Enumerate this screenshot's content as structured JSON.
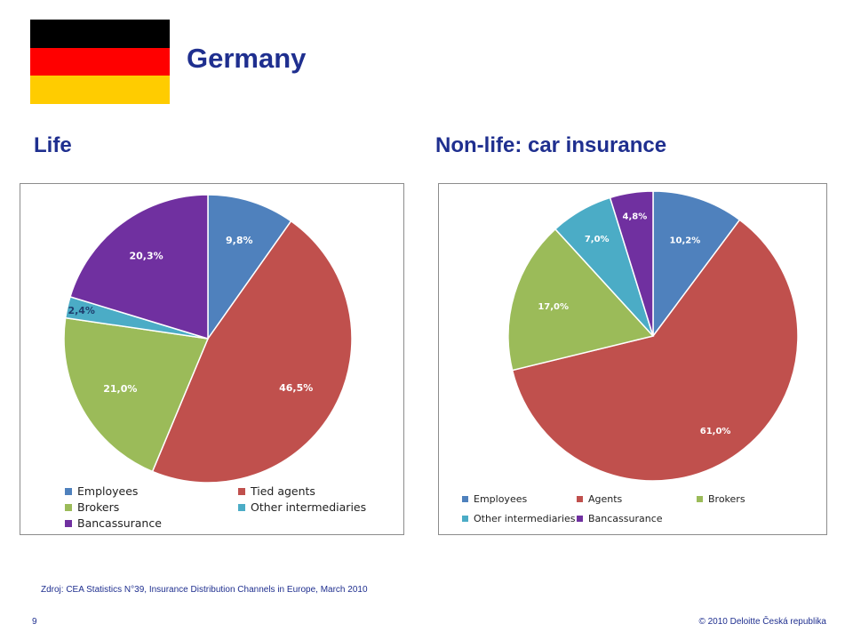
{
  "header": {
    "title": "Germany",
    "flag_colors": [
      "#000000",
      "#ff0000",
      "#ffcc00"
    ]
  },
  "chart_data": [
    {
      "type": "pie",
      "title": "Life",
      "categories": [
        "Employees",
        "Tied agents",
        "Brokers",
        "Other intermediaries",
        "Bancassurance"
      ],
      "values": [
        9.8,
        46.5,
        21.0,
        2.4,
        20.3
      ],
      "labels": [
        "9,8%",
        "46,5%",
        "21,0%",
        "2,4%",
        "20,3%"
      ],
      "colors": [
        "#4f81bd",
        "#c0504d",
        "#9bbb59",
        "#4bacc6",
        "#7030a0"
      ],
      "legend_position": "bottom"
    },
    {
      "type": "pie",
      "title": "Non-life: car insurance",
      "categories": [
        "Employees",
        "Agents",
        "Brokers",
        "Other intermediaries",
        "Bancassurance"
      ],
      "values": [
        10.2,
        61.0,
        17.0,
        7.0,
        4.8
      ],
      "labels": [
        "10,2%",
        "61,0%",
        "17,0%",
        "7,0%",
        "4,8%"
      ],
      "colors": [
        "#4f81bd",
        "#c0504d",
        "#9bbb59",
        "#4bacc6",
        "#7030a0"
      ],
      "legend_position": "bottom"
    }
  ],
  "footer": {
    "source": "Zdroj: CEA Statistics N°39, Insurance Distribution Channels in Europe, March 2010",
    "page_number": "9",
    "copyright": "© 2010 Deloitte Česká republika"
  }
}
